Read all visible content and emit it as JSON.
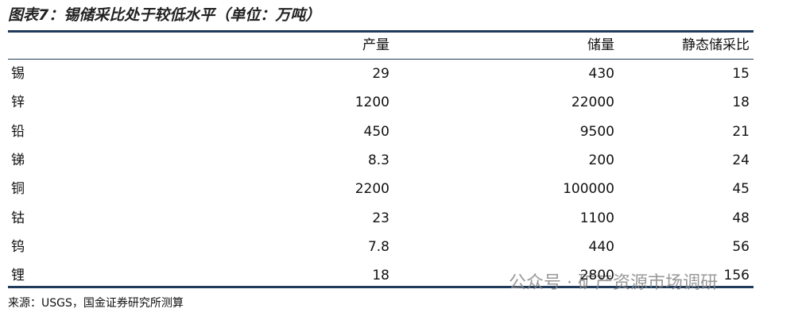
{
  "title": "图表7：锡储采比处于较低水平（单位：万吨）",
  "table": {
    "header": [
      "产量",
      "储量",
      "静态储采比"
    ],
    "rows": [
      [
        "锡",
        29,
        430,
        15
      ],
      [
        "锌",
        1200,
        22000,
        18
      ],
      [
        "铅",
        450,
        9500,
        21
      ],
      [
        "锑",
        8.3,
        200,
        24
      ],
      [
        "铜",
        2200,
        100000,
        45
      ],
      [
        "钴",
        23,
        1100,
        48
      ],
      [
        "钨",
        7.8,
        440,
        56
      ],
      [
        "锂",
        18,
        2800,
        156
      ]
    ]
  },
  "source": "来源：USGS，国金证券研究所测算",
  "watermark": "公众号 · 矿产资源市场调研"
}
